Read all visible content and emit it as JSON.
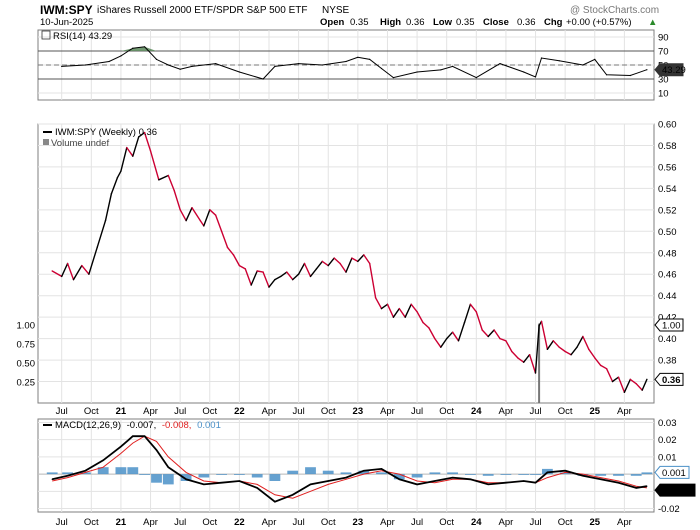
{
  "header": {
    "symbol": "IWM:SPY",
    "name": "iShares Russell 2000 ETF/SPDR S&P 500 ETF",
    "exchange": "NYSE",
    "date": "10-Jun-2025",
    "watermark": "@ StockCharts.com",
    "open_label": "Open",
    "open": "0.35",
    "high_label": "High",
    "high": "0.36",
    "low_label": "Low",
    "low": "0.35",
    "close_label": "Close",
    "close": "0.36",
    "chg_label": "Chg",
    "chg": "+0.00 (+0.57%)",
    "up_arrow": "▲"
  },
  "colors": {
    "price_up": "#000000",
    "price_down": "#cc0033",
    "volume": "#1f77b4",
    "macd_hist": "#4a90c8",
    "macd_signal": "#e02020",
    "rsi_fill": "#5a8a5a",
    "tag_bg": "#ffffff"
  },
  "chart_data": [
    {
      "type": "line",
      "title": "RSI(14) 43.29",
      "legend": "RSI(14) 43.29",
      "ylim": [
        0,
        100
      ],
      "y_ticks": [
        "90",
        "70",
        "50",
        "30",
        "10"
      ],
      "reference_lines": [
        70,
        50,
        30
      ],
      "last_value_tag": "43.29",
      "x": [
        2020.5,
        2020.7,
        2020.9,
        2021.0,
        2021.1,
        2021.2,
        2021.3,
        2021.4,
        2021.5,
        2021.6,
        2021.8,
        2022.0,
        2022.2,
        2022.3,
        2022.5,
        2022.7,
        2022.9,
        2023.0,
        2023.1,
        2023.2,
        2023.3,
        2023.5,
        2023.7,
        2023.8,
        2024.0,
        2024.2,
        2024.4,
        2024.5,
        2024.55,
        2024.7,
        2024.9,
        2025.0,
        2025.1,
        2025.3,
        2025.44
      ],
      "values": [
        48,
        50,
        55,
        63,
        74,
        76,
        58,
        50,
        44,
        48,
        52,
        40,
        30,
        48,
        52,
        50,
        55,
        61,
        58,
        45,
        32,
        40,
        43,
        48,
        32,
        52,
        40,
        33,
        60,
        56,
        50,
        58,
        36,
        35,
        43.29
      ]
    },
    {
      "type": "line",
      "title": "IWM:SPY (Weekly) 0.36",
      "legend": "IWM:SPY (Weekly) 0.36",
      "legend_volume": "Volume undef",
      "ylim": [
        0.34,
        0.6
      ],
      "y_ticks": [
        "0.60",
        "0.58",
        "0.56",
        "0.54",
        "0.52",
        "0.50",
        "0.48",
        "0.46",
        "0.44",
        "0.42",
        "0.40",
        "0.38",
        "0.36"
      ],
      "left_ticks": [
        "1.00",
        "0.75",
        "0.50",
        "0.25"
      ],
      "x_ticks": [
        "Jul",
        "Oct",
        "21",
        "Apr",
        "Jul",
        "Oct",
        "22",
        "Apr",
        "Jul",
        "Oct",
        "23",
        "Apr",
        "Jul",
        "Oct",
        "24",
        "Apr",
        "Jul",
        "Oct",
        "25",
        "Apr"
      ],
      "tag_tall": "1.00",
      "last_value_tag": "0.36",
      "x": [
        2020.42,
        2020.5,
        2020.55,
        2020.6,
        2020.67,
        2020.73,
        2020.8,
        2020.87,
        2020.92,
        2020.97,
        2021.0,
        2021.05,
        2021.1,
        2021.15,
        2021.2,
        2021.25,
        2021.32,
        2021.4,
        2021.45,
        2021.5,
        2021.55,
        2021.6,
        2021.67,
        2021.7,
        2021.75,
        2021.8,
        2021.85,
        2021.9,
        2021.95,
        2022.0,
        2022.05,
        2022.1,
        2022.15,
        2022.2,
        2022.25,
        2022.3,
        2022.35,
        2022.4,
        2022.45,
        2022.5,
        2022.55,
        2022.6,
        2022.65,
        2022.7,
        2022.75,
        2022.8,
        2022.85,
        2022.9,
        2022.95,
        2023.0,
        2023.05,
        2023.1,
        2023.15,
        2023.2,
        2023.25,
        2023.3,
        2023.35,
        2023.4,
        2023.45,
        2023.5,
        2023.55,
        2023.6,
        2023.65,
        2023.7,
        2023.75,
        2023.8,
        2023.85,
        2023.9,
        2023.95,
        2024.0,
        2024.05,
        2024.1,
        2024.15,
        2024.2,
        2024.25,
        2024.3,
        2024.35,
        2024.4,
        2024.45,
        2024.5,
        2024.53,
        2024.55,
        2024.6,
        2024.65,
        2024.7,
        2024.75,
        2024.8,
        2024.85,
        2024.9,
        2024.95,
        2025.0,
        2025.05,
        2025.1,
        2025.15,
        2025.2,
        2025.25,
        2025.3,
        2025.35,
        2025.4,
        2025.44
      ],
      "values": [
        0.463,
        0.458,
        0.47,
        0.455,
        0.468,
        0.46,
        0.485,
        0.51,
        0.535,
        0.55,
        0.556,
        0.578,
        0.57,
        0.588,
        0.592,
        0.575,
        0.548,
        0.552,
        0.538,
        0.52,
        0.51,
        0.522,
        0.51,
        0.505,
        0.52,
        0.515,
        0.5,
        0.485,
        0.478,
        0.468,
        0.465,
        0.45,
        0.463,
        0.462,
        0.448,
        0.455,
        0.458,
        0.462,
        0.455,
        0.46,
        0.47,
        0.458,
        0.465,
        0.472,
        0.468,
        0.475,
        0.47,
        0.462,
        0.475,
        0.472,
        0.478,
        0.47,
        0.438,
        0.428,
        0.432,
        0.42,
        0.428,
        0.42,
        0.432,
        0.425,
        0.415,
        0.41,
        0.4,
        0.392,
        0.4,
        0.406,
        0.398,
        0.415,
        0.432,
        0.425,
        0.408,
        0.402,
        0.408,
        0.4,
        0.398,
        0.388,
        0.382,
        0.378,
        0.385,
        0.368,
        0.412,
        0.416,
        0.39,
        0.398,
        0.392,
        0.388,
        0.385,
        0.392,
        0.402,
        0.39,
        0.382,
        0.375,
        0.372,
        0.36,
        0.364,
        0.35,
        0.362,
        0.358,
        0.352,
        0.362
      ]
    },
    {
      "type": "line",
      "title": "MACD(12,26,9) -0.007, -0.008, 0.001",
      "legend_main": "MACD(12,26,9)",
      "legend_macd": "-0.007,",
      "legend_signal": "-0.008,",
      "legend_hist": "0.001",
      "ylim": [
        -0.022,
        0.032
      ],
      "y_ticks": [
        "0.03",
        "0.02",
        "0.01",
        "0.00",
        "-0.01",
        "-0.02"
      ],
      "x_ticks": [
        "Jul",
        "Oct",
        "21",
        "Apr",
        "Jul",
        "Oct",
        "22",
        "Apr",
        "Jul",
        "Oct",
        "23",
        "Apr",
        "Jul",
        "Oct",
        "24",
        "Apr",
        "Jul",
        "Oct",
        "25",
        "Apr"
      ],
      "hist_tag": "0.001",
      "macd_tag": "-0.007",
      "x": [
        2020.42,
        2020.55,
        2020.7,
        2020.85,
        2021.0,
        2021.1,
        2021.2,
        2021.3,
        2021.4,
        2021.55,
        2021.7,
        2021.85,
        2022.0,
        2022.15,
        2022.3,
        2022.45,
        2022.6,
        2022.75,
        2022.9,
        2023.05,
        2023.2,
        2023.35,
        2023.5,
        2023.65,
        2023.8,
        2023.95,
        2024.1,
        2024.25,
        2024.4,
        2024.5,
        2024.6,
        2024.75,
        2024.9,
        2025.05,
        2025.2,
        2025.35,
        2025.44
      ],
      "series": [
        {
          "name": "MACD",
          "values": [
            -0.003,
            -0.001,
            0.002,
            0.008,
            0.016,
            0.022,
            0.022,
            0.014,
            0.004,
            -0.003,
            -0.006,
            -0.005,
            -0.004,
            -0.008,
            -0.016,
            -0.012,
            -0.006,
            -0.004,
            -0.002,
            0.002,
            0.003,
            -0.003,
            -0.006,
            -0.004,
            -0.002,
            -0.003,
            -0.006,
            -0.005,
            -0.004,
            -0.005,
            0.001,
            0.002,
            -0.001,
            -0.003,
            -0.005,
            -0.008,
            -0.007
          ]
        },
        {
          "name": "Signal",
          "values": [
            -0.004,
            -0.002,
            0.001,
            0.004,
            0.012,
            0.018,
            0.022,
            0.019,
            0.01,
            0.001,
            -0.004,
            -0.005,
            -0.004,
            -0.006,
            -0.012,
            -0.014,
            -0.01,
            -0.006,
            -0.003,
            0.0,
            0.002,
            0.0,
            -0.004,
            -0.005,
            -0.003,
            -0.003,
            -0.005,
            -0.005,
            -0.004,
            -0.005,
            -0.002,
            0.001,
            0.0,
            -0.002,
            -0.004,
            -0.007,
            -0.008
          ]
        },
        {
          "name": "Histogram",
          "values": [
            0.001,
            0.001,
            0.001,
            0.004,
            0.004,
            0.004,
            0.0,
            -0.005,
            -0.006,
            -0.004,
            -0.002,
            0.0,
            0.0,
            -0.002,
            -0.004,
            0.002,
            0.004,
            0.002,
            0.001,
            0.002,
            0.001,
            -0.003,
            -0.002,
            0.001,
            0.001,
            0.0,
            -0.001,
            0.0,
            0.0,
            0.0,
            0.003,
            0.001,
            -0.001,
            -0.001,
            -0.001,
            -0.001,
            0.001
          ]
        }
      ]
    }
  ]
}
